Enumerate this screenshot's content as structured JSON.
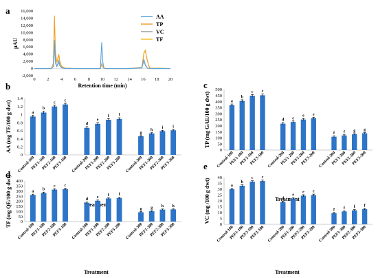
{
  "colors": {
    "bar": "#2e75c8",
    "axis": "#bdbdbd",
    "AA": "#5ba3d9",
    "TP": "#f0a030",
    "VC": "#9e9e9e",
    "TF": "#f2c230"
  },
  "chart_data": [
    {
      "panel": "a",
      "type": "line",
      "xlabel": "Retention time (min)",
      "ylabel": "μAU",
      "xlim": [
        0,
        20
      ],
      "ylim": [
        -2000,
        16000
      ],
      "xticks": [
        "0",
        "2",
        "4",
        "6",
        "8",
        "10",
        "12",
        "14",
        "16",
        "18",
        "20"
      ],
      "yticks": [
        "-2,000",
        "0",
        "2,000",
        "4,000",
        "6,000",
        "8,000",
        "10,000",
        "12,000",
        "14,000",
        "16,000"
      ],
      "legend_position": "top-right",
      "series": [
        {
          "name": "AA",
          "x": [
            0,
            2.5,
            2.8,
            2.95,
            3.1,
            3.3,
            3.6,
            3.75,
            4.0,
            4.5,
            6,
            8,
            9.7,
            9.9,
            10.05,
            10.2,
            10.5,
            12,
            14,
            15.8,
            16.1,
            16.3,
            16.6,
            17,
            20
          ],
          "y": [
            0,
            0,
            600,
            7900,
            2000,
            600,
            2200,
            900,
            250,
            0,
            0,
            0,
            0,
            7300,
            2000,
            200,
            0,
            0,
            0,
            200,
            2500,
            1100,
            150,
            0,
            0
          ]
        },
        {
          "name": "TP",
          "x": [
            0,
            2.5,
            2.8,
            2.95,
            3.1,
            3.3,
            3.6,
            3.75,
            4.0,
            4.5,
            6,
            8,
            9.7,
            9.9,
            10.05,
            10.2,
            10.5,
            12,
            14,
            15.8,
            16.1,
            16.3,
            16.5,
            16.8,
            17,
            20
          ],
          "y": [
            0,
            0,
            1500,
            14700,
            4500,
            1800,
            4000,
            2000,
            600,
            100,
            0,
            0,
            0,
            1200,
            500,
            100,
            0,
            0,
            0,
            300,
            4200,
            5000,
            3000,
            800,
            100,
            0
          ]
        },
        {
          "name": "VC",
          "x": [
            0,
            2.5,
            2.8,
            2.95,
            3.1,
            3.3,
            3.6,
            3.75,
            4.0,
            4.5,
            6,
            8,
            9.7,
            9.9,
            10.05,
            10.2,
            10.5,
            12,
            14,
            15.8,
            16.1,
            16.3,
            16.6,
            17,
            20
          ],
          "y": [
            0,
            0,
            500,
            6000,
            1500,
            500,
            1700,
            700,
            200,
            0,
            0,
            0,
            0,
            1400,
            500,
            100,
            0,
            0,
            0,
            150,
            2200,
            900,
            100,
            0,
            0
          ]
        },
        {
          "name": "TF",
          "x": [
            0,
            2.5,
            2.8,
            2.95,
            3.1,
            3.3,
            3.6,
            3.75,
            4.0,
            4.5,
            6,
            8,
            9.7,
            9.9,
            10.05,
            10.2,
            10.5,
            12,
            14,
            15.8,
            16.1,
            16.3,
            16.5,
            16.8,
            17,
            20
          ],
          "y": [
            0,
            0,
            1400,
            13700,
            4000,
            1600,
            3700,
            1800,
            500,
            100,
            0,
            0,
            0,
            1300,
            500,
            100,
            0,
            0,
            0,
            300,
            4400,
            5100,
            3200,
            900,
            100,
            0
          ]
        }
      ]
    },
    {
      "panel": "b",
      "type": "bar",
      "ylabel": "AA (mg TE/100 g dwt)",
      "xlabel": "Treatment",
      "ylim": [
        0,
        1.4
      ],
      "ytick_values": [
        0,
        0.2,
        0.4,
        0.6,
        0.8,
        1,
        1.2,
        1.4
      ],
      "ytick_labels": [
        "0",
        "0.2",
        "0.4",
        "0.6",
        "0.8",
        "1",
        "1.2",
        "1.4"
      ],
      "categories": [
        "Control-100",
        "PEF1-100",
        "PEF2-100",
        "PEF3-100",
        "Control-200",
        "PEF1-200",
        "PEF2-200",
        "PEF3-200",
        "Control-300",
        "PEF1-300",
        "PEF2-300",
        "PEF3-300"
      ],
      "values": [
        0.95,
        1.05,
        1.2,
        1.25,
        0.67,
        0.77,
        0.87,
        0.89,
        0.46,
        0.53,
        0.59,
        0.61
      ],
      "errors": [
        0.03,
        0.03,
        0.03,
        0.03,
        0.03,
        0.03,
        0.03,
        0.03,
        0.02,
        0.02,
        0.02,
        0.02
      ],
      "letters": [
        "a",
        "b",
        "c",
        "c",
        "d",
        "e",
        "f",
        "f",
        "g",
        "h",
        "i",
        "i"
      ]
    },
    {
      "panel": "c",
      "type": "bar",
      "ylabel": "TP (mg GAE/100 g dwt)",
      "xlabel": "Treatment",
      "ylim": [
        0,
        500
      ],
      "ytick_values": [
        0,
        50,
        100,
        150,
        200,
        250,
        300,
        350,
        400,
        450,
        500
      ],
      "ytick_labels": [
        "0",
        "50",
        "100",
        "150",
        "200",
        "250",
        "300",
        "350",
        "400",
        "450",
        "500"
      ],
      "categories": [
        "Control-100",
        "PEF1-100",
        "PEF2-100",
        "PEF3-100",
        "Control-200",
        "PEF1-200",
        "PEF2-200",
        "PEF3-200",
        "Control-300",
        "PEF1-300",
        "PEF2-300",
        "PEF3-300"
      ],
      "values": [
        370,
        405,
        448,
        452,
        218,
        232,
        252,
        262,
        110,
        120,
        130,
        138
      ],
      "errors": [
        10,
        10,
        10,
        10,
        8,
        8,
        8,
        8,
        6,
        6,
        6,
        6
      ],
      "letters": [
        "a",
        "b",
        "c",
        "c",
        "d",
        "e",
        "e",
        "e",
        "f",
        "f",
        "g",
        "g"
      ]
    },
    {
      "panel": "d",
      "type": "bar",
      "ylabel": "TF (mg QE/100 g dwt)",
      "xlabel": "Treatment",
      "ylim": [
        0,
        400
      ],
      "ytick_values": [
        0,
        50,
        100,
        150,
        200,
        250,
        300,
        350,
        400
      ],
      "ytick_labels": [
        "0",
        "50",
        "100",
        "150",
        "200",
        "250",
        "300",
        "350",
        "400"
      ],
      "categories": [
        "Control-100",
        "PEF1-100",
        "PEF2-100",
        "PEF3-100",
        "Control-200",
        "PEF1-200",
        "PEF2-200",
        "PEF3-200",
        "Control-300",
        "PEF1-300",
        "PEF2-300",
        "PEF3-300"
      ],
      "values": [
        262,
        282,
        315,
        320,
        185,
        205,
        228,
        232,
        92,
        102,
        118,
        120
      ],
      "errors": [
        8,
        8,
        8,
        8,
        7,
        7,
        7,
        7,
        6,
        6,
        6,
        6
      ],
      "letters": [
        "a",
        "b",
        "c",
        "c",
        "d",
        "e",
        "f",
        "f",
        "g",
        "g",
        "h",
        "h"
      ]
    },
    {
      "panel": "e",
      "type": "bar",
      "ylabel": "VC (mg /100 g dwt)",
      "xlabel": "Treatment",
      "ylim": [
        0,
        40
      ],
      "ytick_values": [
        0,
        5,
        10,
        15,
        20,
        25,
        30,
        35,
        40
      ],
      "ytick_labels": [
        "0",
        "5",
        "10",
        "15",
        "20",
        "25",
        "30",
        "35",
        "40"
      ],
      "categories": [
        "Control-100",
        "PEF1-100",
        "PEF2-100",
        "PEF3-100",
        "Control-200",
        "PEF1-200",
        "PEF2-200",
        "PEF3-200",
        "Control-300",
        "PEF1-300",
        "PEF2-300",
        "PEF3-300"
      ],
      "values": [
        30,
        33,
        36.5,
        37,
        19,
        22,
        24.5,
        25,
        9.5,
        11,
        12,
        13
      ],
      "errors": [
        0.8,
        0.8,
        0.8,
        0.8,
        0.8,
        0.8,
        0.8,
        0.8,
        0.6,
        0.6,
        0.6,
        0.6
      ],
      "letters": [
        "a",
        "b",
        "c",
        "c",
        "d",
        "e",
        "e",
        "e",
        "f",
        "f",
        "f",
        "f"
      ]
    }
  ]
}
